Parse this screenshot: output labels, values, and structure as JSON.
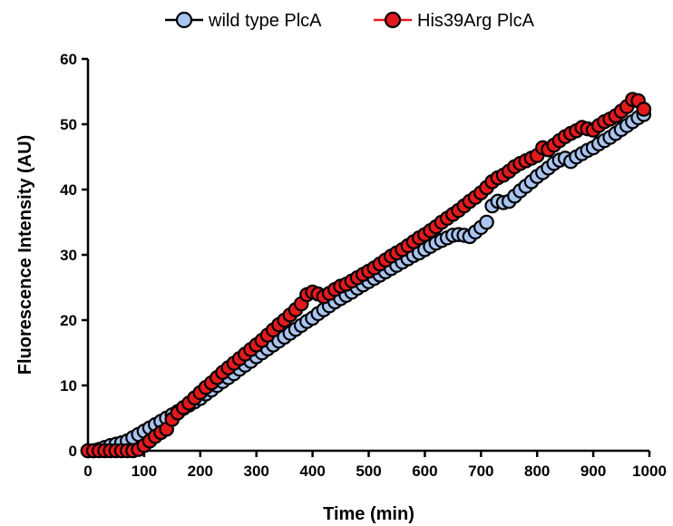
{
  "chart_data": {
    "type": "scatter",
    "title": "",
    "xlabel": "Time (min)",
    "ylabel": "Fluorescence Intensity (AU)",
    "xlim": [
      0,
      1000
    ],
    "ylim": [
      0,
      60
    ],
    "xticks": [
      0,
      100,
      200,
      300,
      400,
      500,
      600,
      700,
      800,
      900,
      1000
    ],
    "yticks": [
      0,
      10,
      20,
      30,
      40,
      50,
      60
    ],
    "grid": false,
    "legend_position": "top",
    "series": [
      {
        "name": "wild type PlcA",
        "color": "#a9c4ef",
        "x": [
          0,
          10,
          20,
          30,
          40,
          50,
          60,
          70,
          80,
          90,
          100,
          110,
          120,
          130,
          140,
          150,
          160,
          170,
          180,
          190,
          200,
          210,
          220,
          230,
          240,
          250,
          260,
          270,
          280,
          290,
          300,
          310,
          320,
          330,
          340,
          350,
          360,
          370,
          380,
          390,
          400,
          410,
          420,
          430,
          440,
          450,
          460,
          470,
          480,
          490,
          500,
          510,
          520,
          530,
          540,
          550,
          560,
          570,
          580,
          590,
          600,
          610,
          620,
          630,
          640,
          650,
          660,
          670,
          680,
          690,
          700,
          710,
          720,
          730,
          740,
          750,
          760,
          770,
          780,
          790,
          800,
          810,
          820,
          830,
          840,
          850,
          860,
          870,
          880,
          890,
          900,
          910,
          920,
          930,
          940,
          950,
          960,
          970,
          980,
          990
        ],
        "y": [
          0,
          0,
          0.2,
          0.5,
          0.8,
          1.0,
          1.2,
          1.5,
          2.0,
          2.5,
          3.0,
          3.5,
          4.0,
          4.5,
          5.0,
          5.5,
          6.0,
          6.5,
          7.0,
          7.5,
          8.0,
          8.7,
          9.3,
          10.0,
          10.6,
          11.2,
          11.8,
          12.5,
          13.1,
          13.7,
          14.4,
          15.0,
          15.6,
          16.2,
          16.8,
          17.4,
          18.0,
          18.6,
          19.2,
          19.8,
          20.3,
          21.0,
          21.6,
          22.2,
          22.8,
          23.3,
          23.8,
          24.3,
          24.9,
          25.4,
          25.9,
          26.4,
          26.9,
          27.4,
          27.9,
          28.4,
          28.9,
          29.4,
          29.9,
          30.3,
          30.8,
          31.3,
          31.8,
          32.2,
          32.6,
          33.0,
          33.1,
          33.0,
          32.8,
          33.5,
          34.2,
          35.0,
          37.5,
          38.2,
          38.0,
          38.2,
          39.0,
          39.8,
          40.5,
          41.2,
          42.0,
          42.6,
          43.3,
          44.0,
          44.5,
          44.8,
          44.3,
          45.0,
          45.5,
          46.0,
          46.4,
          47.0,
          47.5,
          48.0,
          48.6,
          49.2,
          49.8,
          50.4,
          51.0,
          51.5
        ]
      },
      {
        "name": "His39Arg PlcA",
        "color": "#e31a1c",
        "x": [
          0,
          10,
          20,
          30,
          40,
          50,
          60,
          70,
          80,
          90,
          100,
          110,
          120,
          130,
          140,
          150,
          160,
          170,
          180,
          190,
          200,
          210,
          220,
          230,
          240,
          250,
          260,
          270,
          280,
          290,
          300,
          310,
          320,
          330,
          340,
          350,
          360,
          370,
          380,
          390,
          400,
          410,
          420,
          430,
          440,
          450,
          460,
          470,
          480,
          490,
          500,
          510,
          520,
          530,
          540,
          550,
          560,
          570,
          580,
          590,
          600,
          610,
          620,
          630,
          640,
          650,
          660,
          670,
          680,
          690,
          700,
          710,
          720,
          730,
          740,
          750,
          760,
          770,
          780,
          790,
          800,
          810,
          820,
          830,
          840,
          850,
          860,
          870,
          880,
          890,
          900,
          910,
          920,
          930,
          940,
          950,
          960,
          970,
          980,
          990
        ],
        "y": [
          0,
          0,
          0,
          0,
          0,
          0,
          0,
          0,
          0,
          0.2,
          0.8,
          1.5,
          2.2,
          2.8,
          3.3,
          4.8,
          5.8,
          6.6,
          7.3,
          8.1,
          8.9,
          9.7,
          10.4,
          11.2,
          12.0,
          12.7,
          13.4,
          14.1,
          14.8,
          15.5,
          16.2,
          16.9,
          17.7,
          18.5,
          19.3,
          20.0,
          20.8,
          21.6,
          22.5,
          23.9,
          24.3,
          24.0,
          23.6,
          24.1,
          24.7,
          25.2,
          25.5,
          26.0,
          26.5,
          27.0,
          27.5,
          28.0,
          28.6,
          29.2,
          29.8,
          30.3,
          30.8,
          31.4,
          32.0,
          32.6,
          33.1,
          33.7,
          34.3,
          35.0,
          35.6,
          36.2,
          36.8,
          37.5,
          38.2,
          38.8,
          39.5,
          40.3,
          41.2,
          41.8,
          42.2,
          42.8,
          43.5,
          44.0,
          44.4,
          44.8,
          45.2,
          46.4,
          46.1,
          46.8,
          47.5,
          48.1,
          48.6,
          49.0,
          49.5,
          49.3,
          49.1,
          49.8,
          50.4,
          50.8,
          51.3,
          52.0,
          52.7,
          53.8,
          53.6,
          52.3
        ]
      }
    ]
  }
}
